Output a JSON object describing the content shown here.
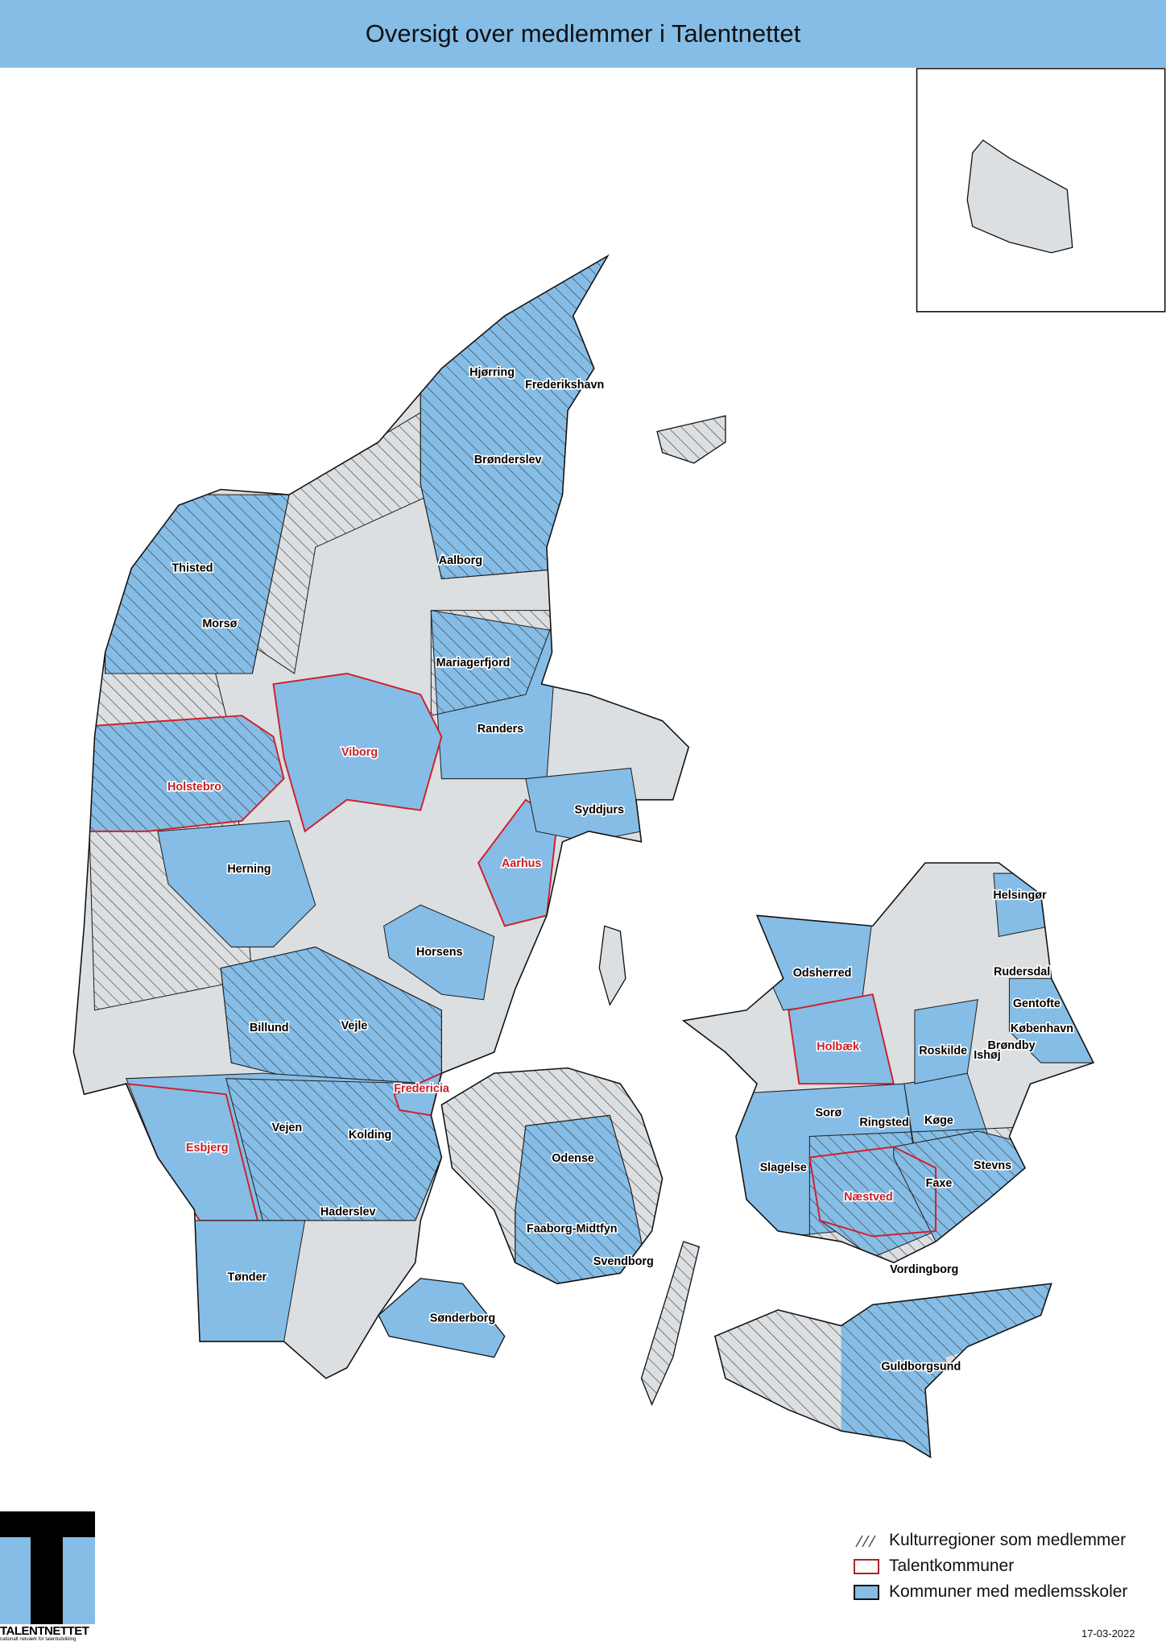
{
  "title": "Oversigt over medlemmer i Talentnettet",
  "colors": {
    "member_fill": "#85bde6",
    "other_fill": "#dcdfe2",
    "talent_outline": "#d0202a",
    "title_bar": "#85bde6",
    "hatch": "#333333"
  },
  "labels": [
    {
      "name": "Hjørring",
      "talent": false
    },
    {
      "name": "Frederikshavn",
      "talent": false
    },
    {
      "name": "Brønderslev",
      "talent": false
    },
    {
      "name": "Thisted",
      "talent": false
    },
    {
      "name": "Aalborg",
      "talent": false
    },
    {
      "name": "Morsø",
      "talent": false
    },
    {
      "name": "Mariagerfjord",
      "talent": false
    },
    {
      "name": "Randers",
      "talent": false
    },
    {
      "name": "Viborg",
      "talent": true
    },
    {
      "name": "Holstebro",
      "talent": true
    },
    {
      "name": "Syddjurs",
      "talent": false
    },
    {
      "name": "Herning",
      "talent": false
    },
    {
      "name": "Aarhus",
      "talent": true
    },
    {
      "name": "Horsens",
      "talent": false
    },
    {
      "name": "Billund",
      "talent": false
    },
    {
      "name": "Vejle",
      "talent": false
    },
    {
      "name": "Fredericia",
      "talent": true
    },
    {
      "name": "Vejen",
      "talent": false
    },
    {
      "name": "Kolding",
      "talent": false
    },
    {
      "name": "Esbjerg",
      "talent": true
    },
    {
      "name": "Haderslev",
      "talent": false
    },
    {
      "name": "Tønder",
      "talent": false
    },
    {
      "name": "Sønderborg",
      "talent": false
    },
    {
      "name": "Odense",
      "talent": false
    },
    {
      "name": "Faaborg-Midtfyn",
      "talent": false
    },
    {
      "name": "Svendborg",
      "talent": false
    },
    {
      "name": "Helsingør",
      "talent": false
    },
    {
      "name": "Odsherred",
      "talent": false
    },
    {
      "name": "Rudersdal",
      "talent": false
    },
    {
      "name": "Gentofte",
      "talent": false
    },
    {
      "name": "København",
      "talent": false
    },
    {
      "name": "Holbæk",
      "talent": true
    },
    {
      "name": "Roskilde",
      "talent": false
    },
    {
      "name": "Brøndby",
      "talent": false
    },
    {
      "name": "Ishøj",
      "talent": false
    },
    {
      "name": "Sorø",
      "talent": false
    },
    {
      "name": "Ringsted",
      "talent": false
    },
    {
      "name": "Køge",
      "talent": false
    },
    {
      "name": "Slagelse",
      "talent": false
    },
    {
      "name": "Stevns",
      "talent": false
    },
    {
      "name": "Næstved",
      "talent": true
    },
    {
      "name": "Faxe",
      "talent": false
    },
    {
      "name": "Vordingborg",
      "talent": false
    },
    {
      "name": "Guldborgsund",
      "talent": false
    }
  ],
  "legend": {
    "hatched": "Kulturregioner som medlemmer",
    "talent": "Talentkommuner",
    "member": "Kommuner med medlemsskoler"
  },
  "date": "17-03-2022",
  "logo": {
    "name": "TALENTNETTET",
    "tagline": "nationalt netværk for talentudvikling"
  }
}
